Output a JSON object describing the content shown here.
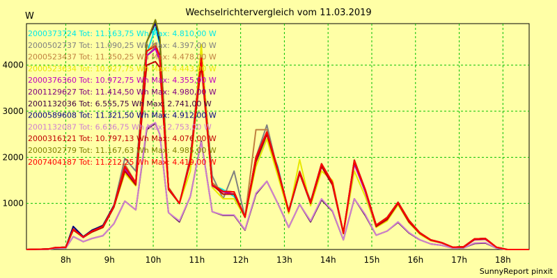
{
  "chart_data": {
    "type": "line",
    "title": "Wechselrichtervergleich vom 11.03.2019",
    "ylabel": "W",
    "credit": "SunnyReport pinxit",
    "ylim": [
      0,
      4900
    ],
    "xlim": [
      7.1,
      18.6
    ],
    "x_ticks": [
      {
        "value": 8,
        "label": "8h"
      },
      {
        "value": 9,
        "label": "9h"
      },
      {
        "value": 10,
        "label": "10h"
      },
      {
        "value": 11,
        "label": "11h"
      },
      {
        "value": 12,
        "label": "12h"
      },
      {
        "value": 13,
        "label": "13h"
      },
      {
        "value": 14,
        "label": "14h"
      },
      {
        "value": 15,
        "label": "15h"
      },
      {
        "value": 16,
        "label": "16h"
      },
      {
        "value": 17,
        "label": "17h"
      },
      {
        "value": 18,
        "label": "18h"
      }
    ],
    "y_ticks": [
      {
        "value": 1000,
        "label": "1000"
      },
      {
        "value": 2000,
        "label": "2000"
      },
      {
        "value": 3000,
        "label": "3000"
      },
      {
        "value": 4000,
        "label": "4000"
      }
    ],
    "grid": true,
    "legend_position": "top-left",
    "x": [
      7.1,
      7.6,
      7.75,
      8.0,
      8.17,
      8.4,
      8.6,
      8.85,
      9.1,
      9.35,
      9.6,
      9.85,
      10.05,
      10.15,
      10.35,
      10.6,
      10.85,
      11.1,
      11.35,
      11.6,
      11.85,
      12.1,
      12.35,
      12.6,
      12.85,
      13.1,
      13.35,
      13.6,
      13.85,
      14.1,
      14.35,
      14.6,
      14.85,
      15.1,
      15.35,
      15.6,
      15.85,
      16.1,
      16.35,
      16.6,
      16.85,
      17.1,
      17.35,
      17.6,
      17.85,
      18.1,
      18.35,
      18.6
    ],
    "series": [
      {
        "name": "2000373724",
        "legend": "2000373724 Tot: 11.163,75 Wh Max: 4.810,00 W",
        "color": "#00e8e8",
        "values": [
          0,
          10,
          40,
          50,
          420,
          270,
          380,
          480,
          920,
          1700,
          1420,
          4250,
          4810,
          4450,
          1300,
          1000,
          1900,
          4100,
          1400,
          1300,
          1150,
          700,
          1900,
          2400,
          1800,
          800,
          1650,
          1000,
          1800,
          1400,
          350,
          1900,
          1300,
          500,
          650,
          1000,
          600,
          350,
          200,
          150,
          50,
          50,
          220,
          230,
          50,
          0,
          0,
          0
        ]
      },
      {
        "name": "2000502737",
        "legend": "2000502737 Tot: 11.090,25 Wh Max: 4.397,00 W",
        "color": "#808080",
        "values": [
          0,
          10,
          40,
          50,
          450,
          280,
          400,
          520,
          950,
          1980,
          1700,
          4200,
          4397,
          4100,
          1350,
          1000,
          2000,
          4300,
          1600,
          1100,
          1700,
          700,
          2000,
          2700,
          1700,
          850,
          1700,
          1050,
          1850,
          1450,
          360,
          1900,
          1250,
          520,
          680,
          1000,
          620,
          360,
          200,
          140,
          50,
          60,
          230,
          240,
          50,
          0,
          0,
          0
        ]
      },
      {
        "name": "2000523437",
        "legend": "2000523437 Tot: 11.350,25 Wh Max: 4.478,00 W",
        "color": "#c08040",
        "values": [
          0,
          10,
          40,
          50,
          450,
          280,
          410,
          530,
          950,
          1850,
          1450,
          4300,
          4478,
          4200,
          1350,
          1000,
          1950,
          4200,
          1450,
          1250,
          1200,
          700,
          2600,
          2600,
          1700,
          820,
          1700,
          1020,
          1850,
          1450,
          360,
          1950,
          1300,
          530,
          700,
          1030,
          640,
          370,
          210,
          150,
          50,
          60,
          230,
          240,
          50,
          0,
          0,
          0
        ]
      },
      {
        "name": "2000523634",
        "legend": "2000523634 Tot: 10.927,75 Wh Max: 4.443,00 W",
        "color": "#e8e800",
        "values": [
          0,
          10,
          40,
          50,
          420,
          260,
          380,
          480,
          920,
          1650,
          1380,
          4300,
          4443,
          4050,
          1300,
          1000,
          1700,
          4443,
          1350,
          1100,
          1100,
          700,
          1800,
          2400,
          1600,
          780,
          1950,
          950,
          1700,
          1500,
          340,
          1700,
          1150,
          480,
          620,
          970,
          580,
          330,
          190,
          140,
          50,
          50,
          210,
          220,
          50,
          0,
          0,
          0
        ]
      },
      {
        "name": "2000376360",
        "legend": "2000376360 Tot: 10.972,75 Wh Max: 4.355,00 W",
        "color": "#c000c0",
        "values": [
          0,
          10,
          40,
          50,
          430,
          260,
          390,
          480,
          920,
          1750,
          1420,
          4200,
          4355,
          4100,
          1320,
          1000,
          1950,
          4100,
          1380,
          1250,
          1200,
          700,
          1950,
          2500,
          1750,
          820,
          1650,
          1000,
          1800,
          1400,
          350,
          1850,
          1250,
          500,
          650,
          1000,
          600,
          350,
          200,
          140,
          50,
          50,
          210,
          220,
          50,
          0,
          0,
          0
        ]
      },
      {
        "name": "2001129627",
        "legend": "2001129627 Tot: 11.414,50 Wh Max: 4.980,00 W",
        "color": "#800080",
        "values": [
          0,
          10,
          40,
          50,
          440,
          270,
          400,
          500,
          940,
          1800,
          1450,
          4500,
          4980,
          4600,
          1330,
          1000,
          1950,
          4150,
          1400,
          1260,
          1250,
          700,
          2000,
          2550,
          1750,
          830,
          1680,
          1020,
          1860,
          1450,
          360,
          1930,
          1300,
          530,
          690,
          1020,
          630,
          360,
          210,
          150,
          50,
          60,
          230,
          240,
          50,
          0,
          0,
          0
        ]
      },
      {
        "name": "2001132036",
        "legend": "2001132036 Tot: 6.555,75 Wh Max: 2.741,00 W",
        "color": "#400040",
        "values": [
          0,
          5,
          25,
          30,
          280,
          170,
          240,
          300,
          560,
          1050,
          860,
          2600,
          2741,
          2500,
          800,
          600,
          1150,
          2350,
          820,
          740,
          740,
          420,
          1200,
          1480,
          1000,
          480,
          980,
          600,
          1080,
          830,
          210,
          1100,
          740,
          310,
          400,
          590,
          360,
          210,
          120,
          90,
          30,
          35,
          130,
          140,
          30,
          0,
          0,
          0
        ]
      },
      {
        "name": "2000589608",
        "legend": "2000589608 Tot: 11.321,50 Wh Max: 4.912,00 W",
        "color": "#000080",
        "values": [
          0,
          10,
          40,
          50,
          500,
          280,
          420,
          520,
          960,
          1800,
          1450,
          4500,
          4912,
          4500,
          1330,
          1000,
          1950,
          4150,
          1400,
          1260,
          1250,
          700,
          2000,
          2550,
          1750,
          830,
          1680,
          1020,
          1860,
          1450,
          360,
          1930,
          1300,
          530,
          690,
          1020,
          630,
          360,
          210,
          150,
          50,
          60,
          230,
          240,
          50,
          0,
          0,
          0
        ]
      },
      {
        "name": "2001132087",
        "legend": "2001132087 Tot: 6.636,75 Wh Max: 2.753,00 W",
        "color": "#d080d0",
        "values": [
          0,
          5,
          25,
          30,
          280,
          170,
          240,
          300,
          560,
          1050,
          860,
          2650,
          2753,
          2500,
          800,
          620,
          1150,
          2330,
          820,
          750,
          750,
          430,
          1220,
          1480,
          1000,
          480,
          980,
          620,
          1100,
          840,
          210,
          1100,
          760,
          310,
          400,
          600,
          370,
          210,
          120,
          90,
          30,
          35,
          140,
          150,
          30,
          0,
          0,
          0
        ]
      },
      {
        "name": "2000316121",
        "legend": "2000316121 Tot: 10.797,13 Wh Max: 4.076,00 W",
        "color": "#c00000",
        "values": [
          0,
          10,
          40,
          50,
          420,
          270,
          380,
          480,
          920,
          1700,
          1400,
          4000,
          4076,
          3950,
          1300,
          1000,
          1900,
          4000,
          1400,
          1200,
          1200,
          700,
          1900,
          2500,
          1700,
          820,
          1650,
          1000,
          1800,
          1400,
          350,
          1900,
          1300,
          500,
          650,
          1000,
          600,
          350,
          200,
          150,
          50,
          50,
          220,
          230,
          50,
          0,
          0,
          0
        ]
      },
      {
        "name": "2000302779",
        "legend": "2000302779 Tot: 11.167,63 Wh Max: 4.985,00 W",
        "color": "#808000",
        "values": [
          0,
          10,
          40,
          50,
          440,
          270,
          400,
          500,
          940,
          1800,
          1450,
          4500,
          4985,
          4600,
          1330,
          1000,
          1950,
          4150,
          1400,
          1260,
          1250,
          700,
          2000,
          2550,
          1750,
          830,
          1680,
          1020,
          1860,
          1450,
          360,
          1930,
          1300,
          530,
          690,
          1020,
          630,
          360,
          210,
          150,
          50,
          60,
          230,
          240,
          50,
          0,
          0,
          0
        ]
      },
      {
        "name": "2007404187",
        "legend": "2007404187 Tot: 11.212,25 Wh Max: 4.419,00 W",
        "color": "#ff0000",
        "values": [
          0,
          10,
          40,
          50,
          440,
          270,
          400,
          500,
          940,
          1800,
          1450,
          4300,
          4419,
          4200,
          1330,
          1000,
          1950,
          4150,
          1400,
          1260,
          1250,
          700,
          2000,
          2550,
          1750,
          830,
          1680,
          1020,
          1860,
          1450,
          360,
          1930,
          1300,
          530,
          690,
          1020,
          630,
          360,
          210,
          150,
          50,
          60,
          230,
          240,
          50,
          0,
          0,
          0
        ]
      }
    ]
  }
}
